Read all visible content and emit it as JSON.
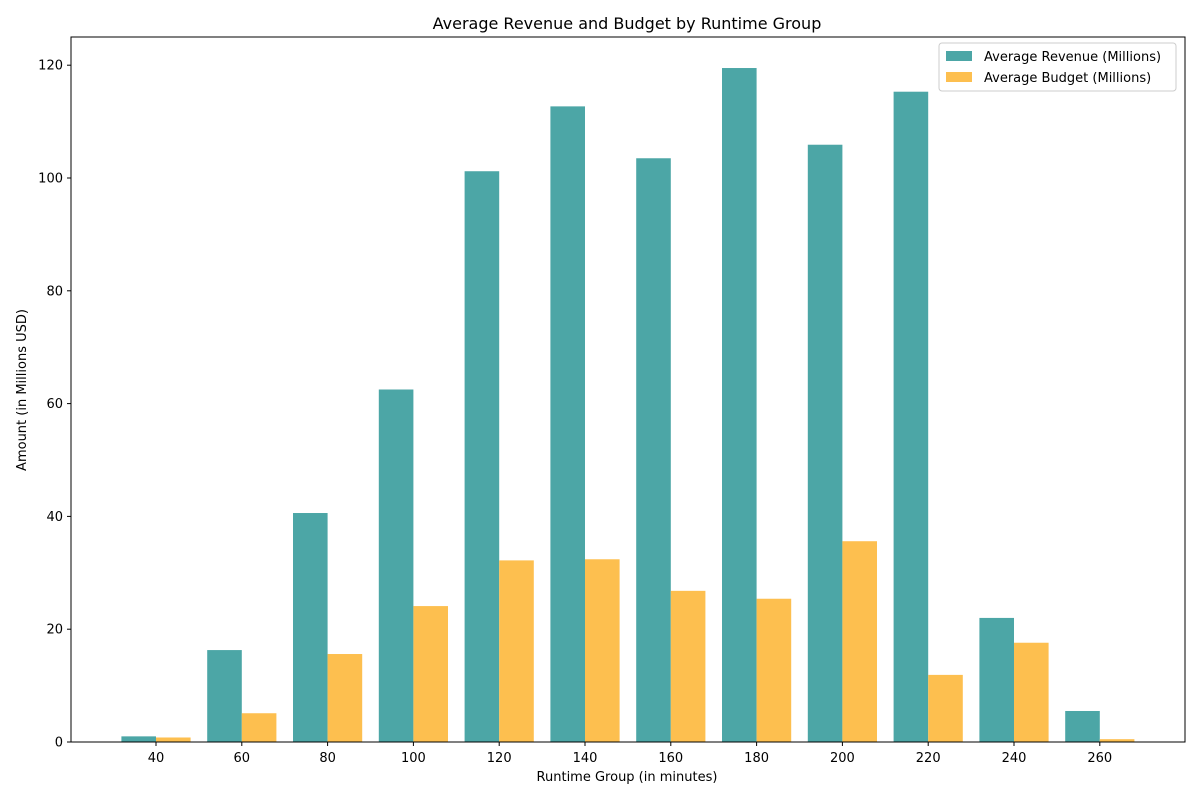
{
  "chart_data": {
    "type": "bar",
    "title": "Average Revenue and Budget by Runtime Group",
    "xlabel": "Runtime Group (in minutes)",
    "ylabel": "Amount (in Millions USD)",
    "categories": [
      "40",
      "60",
      "80",
      "100",
      "120",
      "140",
      "160",
      "180",
      "200",
      "220",
      "240",
      "260"
    ],
    "ylim": [
      0,
      125
    ],
    "yticks": [
      0,
      20,
      40,
      60,
      80,
      100,
      120
    ],
    "grid": false,
    "legend_position": "top-right",
    "series": [
      {
        "name": "Average Revenue (Millions)",
        "color": "#4ca6a6",
        "values": [
          1.0,
          16.3,
          40.6,
          62.5,
          101.2,
          112.7,
          103.5,
          119.5,
          105.9,
          115.3,
          22.0,
          5.5
        ]
      },
      {
        "name": "Average Budget (Millions)",
        "color": "#fdbf4f",
        "values": [
          0.8,
          5.1,
          15.6,
          24.1,
          32.2,
          32.4,
          26.8,
          25.4,
          35.6,
          11.9,
          17.6,
          0.5
        ]
      }
    ]
  }
}
